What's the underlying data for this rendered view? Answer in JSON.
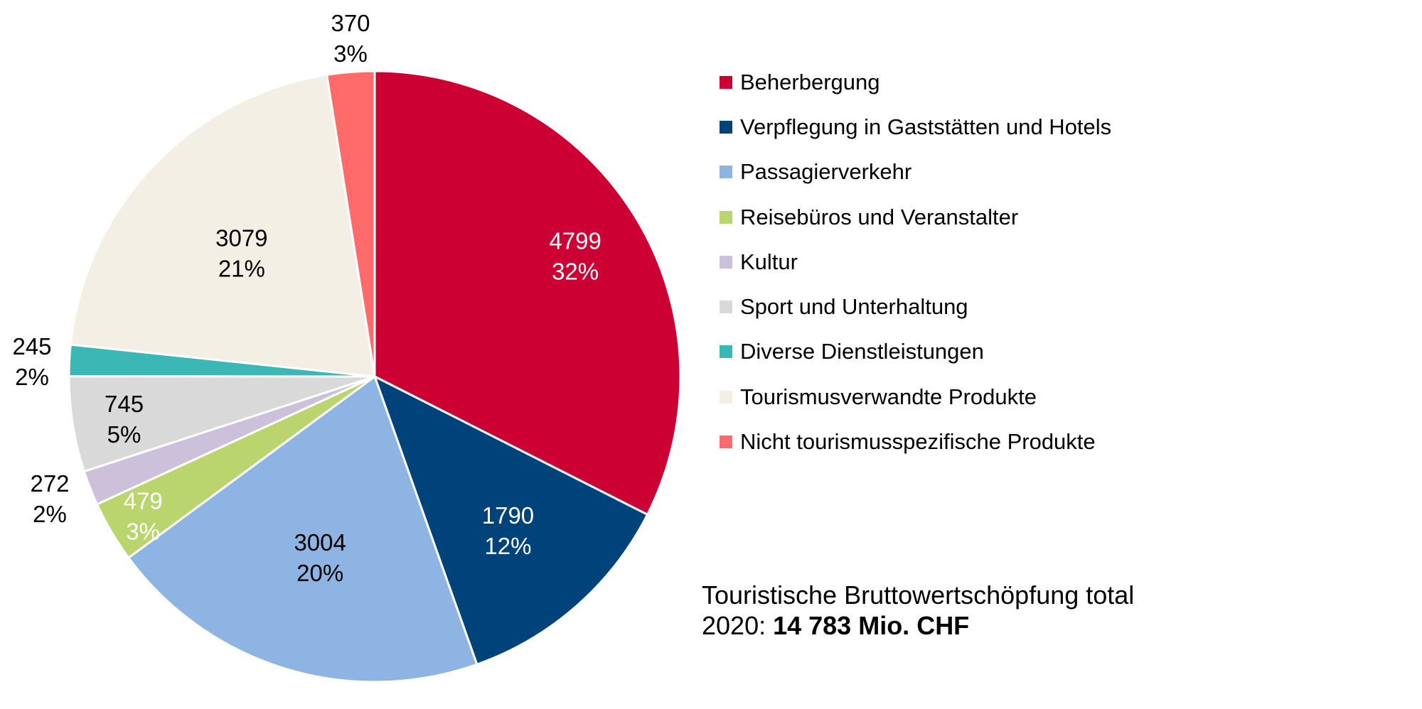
{
  "chart_data": {
    "type": "pie",
    "unit": "Mio. CHF",
    "start": "12 o'clock, clockwise",
    "slices": [
      {
        "name": "Beherbergung",
        "value": 4799,
        "percent": "32%",
        "color": "#CC0033",
        "label_color": "#ffffff"
      },
      {
        "name": "Verpflegung in Gaststätten und Hotels",
        "value": 1790,
        "percent": "12%",
        "color": "#00427A",
        "label_color": "#ffffff"
      },
      {
        "name": "Passagierverkehr",
        "value": 3004,
        "percent": "20%",
        "color": "#8DB4E2",
        "label_color": "#000000"
      },
      {
        "name": "Reisebüros und Veranstalter",
        "value": 479,
        "percent": "3%",
        "color": "#BBD56E",
        "label_color": "#ffffff"
      },
      {
        "name": "Kultur",
        "value": 272,
        "percent": "2%",
        "color": "#CCC0DA",
        "label_color": "#000000"
      },
      {
        "name": "Sport und Unterhaltung",
        "value": 745,
        "percent": "5%",
        "color": "#D9D9D9",
        "label_color": "#000000"
      },
      {
        "name": "Diverse Dienstleistungen",
        "value": 245,
        "percent": "2%",
        "color": "#3BB8B5",
        "label_color": "#000000"
      },
      {
        "name": "Tourismusverwandte Produkte",
        "value": 3079,
        "percent": "21%",
        "color": "#F4EFE4",
        "label_color": "#000000"
      },
      {
        "name": "Nicht tourismusspezifische Produkte",
        "value": 370,
        "percent": "3%",
        "color": "#FF6B6B",
        "label_color": "#000000"
      }
    ]
  },
  "total": {
    "line1": "Touristische Bruttowertschöpfung total",
    "line2_prefix": "2020: ",
    "line2_value": "14 783 Mio. CHF"
  }
}
